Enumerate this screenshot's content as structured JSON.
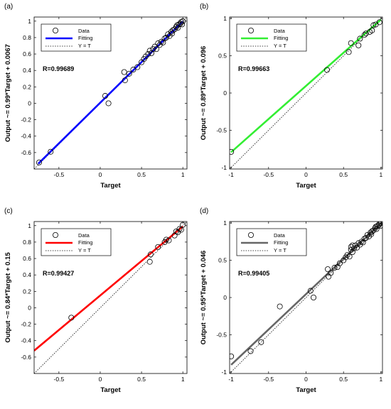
{
  "chart_data": [
    {
      "panel_label": "(a)",
      "type": "scatter",
      "xlabel": "Target",
      "ylabel": "Output ~= 0.99*Target + 0.0067",
      "r_text": "R=0.99689",
      "fit_color": "#0000ff",
      "xlim": [
        -0.8,
        1.05
      ],
      "ylim": [
        -0.8,
        1.05
      ],
      "xticks": [
        -0.5,
        0,
        0.5,
        1
      ],
      "xtick_labels": [
        "-0.5",
        "0",
        "0.5",
        "1"
      ],
      "yticks": [
        -0.6,
        -0.4,
        -0.2,
        0,
        0.2,
        0.4,
        0.6,
        0.8,
        1
      ],
      "ytick_labels": [
        "-0.6",
        "-0.4",
        "-0.2",
        "0",
        "0.2",
        "0.4",
        "0.6",
        "0.8",
        "1"
      ],
      "fit": {
        "slope": 0.99,
        "intercept": 0.0067,
        "x_range": [
          -0.75,
          1.0
        ]
      },
      "legend": {
        "data": "Data",
        "fitting": "Fitting",
        "yt": "Y = T"
      },
      "points": [
        [
          -0.74,
          -0.72
        ],
        [
          -0.6,
          -0.59
        ],
        [
          0.06,
          0.09
        ],
        [
          0.1,
          0.0
        ],
        [
          0.29,
          0.38
        ],
        [
          0.3,
          0.28
        ],
        [
          0.35,
          0.36
        ],
        [
          0.4,
          0.41
        ],
        [
          0.45,
          0.44
        ],
        [
          0.5,
          0.5
        ],
        [
          0.53,
          0.54
        ],
        [
          0.55,
          0.57
        ],
        [
          0.58,
          0.6
        ],
        [
          0.6,
          0.64
        ],
        [
          0.62,
          0.61
        ],
        [
          0.64,
          0.66
        ],
        [
          0.66,
          0.69
        ],
        [
          0.68,
          0.66
        ],
        [
          0.7,
          0.73
        ],
        [
          0.72,
          0.71
        ],
        [
          0.74,
          0.75
        ],
        [
          0.76,
          0.74
        ],
        [
          0.78,
          0.79
        ],
        [
          0.8,
          0.8
        ],
        [
          0.82,
          0.84
        ],
        [
          0.84,
          0.82
        ],
        [
          0.86,
          0.87
        ],
        [
          0.88,
          0.89
        ],
        [
          0.9,
          0.9
        ],
        [
          0.92,
          0.93
        ],
        [
          0.94,
          0.92
        ],
        [
          0.95,
          0.96
        ],
        [
          0.97,
          0.97
        ],
        [
          0.98,
          0.99
        ],
        [
          1.0,
          1.0
        ],
        [
          0.99,
          0.96
        ],
        [
          0.93,
          0.95
        ],
        [
          0.87,
          0.85
        ]
      ]
    },
    {
      "panel_label": "(b)",
      "type": "scatter",
      "xlabel": "Target",
      "ylabel": "Output ~= 0.89*Target + 0.096",
      "r_text": "R=0.99663",
      "fit_color": "#33ee33",
      "xlim": [
        -1.02,
        1.02
      ],
      "ylim": [
        -1.02,
        1.02
      ],
      "xticks": [
        -1,
        -0.5,
        0,
        0.5,
        1
      ],
      "xtick_labels": [
        "-1",
        "-0.5",
        "0",
        "0.5",
        "1"
      ],
      "yticks": [
        -1,
        -0.5,
        0,
        0.5,
        1
      ],
      "ytick_labels": [
        "-1",
        "-0.5",
        "0",
        "0.5",
        "1"
      ],
      "fit": {
        "slope": 0.89,
        "intercept": 0.096,
        "x_range": [
          -1.0,
          1.0
        ]
      },
      "legend": {
        "data": "Data",
        "fitting": "Fitting",
        "yt": "Y = T"
      },
      "points": [
        [
          -1.0,
          -0.79
        ],
        [
          0.28,
          0.31
        ],
        [
          0.57,
          0.55
        ],
        [
          0.6,
          0.67
        ],
        [
          0.7,
          0.64
        ],
        [
          0.72,
          0.73
        ],
        [
          0.78,
          0.78
        ],
        [
          0.8,
          0.8
        ],
        [
          0.85,
          0.82
        ],
        [
          0.88,
          0.84
        ],
        [
          0.9,
          0.91
        ],
        [
          0.93,
          0.92
        ],
        [
          0.98,
          0.95
        ]
      ]
    },
    {
      "panel_label": "(c)",
      "type": "scatter",
      "xlabel": "Target",
      "ylabel": "Output ~= 0.84*Target + 0.15",
      "r_text": "R=0.99427",
      "fit_color": "#ff0000",
      "xlim": [
        -0.8,
        1.05
      ],
      "ylim": [
        -0.8,
        1.05
      ],
      "xticks": [
        -0.5,
        0,
        0.5,
        1
      ],
      "xtick_labels": [
        "-0.5",
        "0",
        "0.5",
        "1"
      ],
      "yticks": [
        -0.6,
        -0.4,
        -0.2,
        0,
        0.2,
        0.4,
        0.6,
        0.8,
        1
      ],
      "ytick_labels": [
        "-0.6",
        "-0.4",
        "-0.2",
        "0",
        "0.2",
        "0.4",
        "0.6",
        "0.8",
        "1"
      ],
      "fit": {
        "slope": 0.84,
        "intercept": 0.15,
        "x_range": [
          -0.8,
          1.0
        ]
      },
      "legend": {
        "data": "Data",
        "fitting": "Fitting",
        "yt": "Y = T"
      },
      "points": [
        [
          -0.35,
          -0.12
        ],
        [
          0.6,
          0.56
        ],
        [
          0.61,
          0.65
        ],
        [
          0.7,
          0.74
        ],
        [
          0.78,
          0.8
        ],
        [
          0.8,
          0.83
        ],
        [
          0.83,
          0.82
        ],
        [
          0.9,
          0.88
        ],
        [
          0.92,
          0.93
        ],
        [
          0.94,
          0.92
        ],
        [
          0.96,
          0.96
        ],
        [
          0.98,
          0.95
        ],
        [
          1.0,
          1.01
        ]
      ]
    },
    {
      "panel_label": "(d)",
      "type": "scatter",
      "xlabel": "Target",
      "ylabel": "Output ~= 0.95*Target + 0.046",
      "r_text": "R=0.99405",
      "fit_color": "#666666",
      "xlim": [
        -1.02,
        1.02
      ],
      "ylim": [
        -1.02,
        1.02
      ],
      "xticks": [
        -1,
        -0.5,
        0,
        0.5,
        1
      ],
      "xtick_labels": [
        "-1",
        "-0.5",
        "0",
        "0.5",
        "1"
      ],
      "yticks": [
        -1,
        -0.5,
        0,
        0.5,
        1
      ],
      "ytick_labels": [
        "-1",
        "-0.5",
        "0",
        "0.5",
        "1"
      ],
      "fit": {
        "slope": 0.95,
        "intercept": 0.046,
        "x_range": [
          -1.0,
          1.0
        ]
      },
      "legend": {
        "data": "Data",
        "fitting": "Fitting",
        "yt": "Y = T"
      },
      "points": [
        [
          -1.0,
          -0.79
        ],
        [
          -0.74,
          -0.72
        ],
        [
          -0.6,
          -0.6
        ],
        [
          -0.35,
          -0.12
        ],
        [
          0.06,
          0.09
        ],
        [
          0.1,
          0.0
        ],
        [
          0.29,
          0.38
        ],
        [
          0.3,
          0.28
        ],
        [
          0.33,
          0.33
        ],
        [
          0.38,
          0.4
        ],
        [
          0.42,
          0.41
        ],
        [
          0.45,
          0.46
        ],
        [
          0.5,
          0.5
        ],
        [
          0.53,
          0.54
        ],
        [
          0.55,
          0.57
        ],
        [
          0.58,
          0.55
        ],
        [
          0.6,
          0.64
        ],
        [
          0.62,
          0.61
        ],
        [
          0.64,
          0.66
        ],
        [
          0.66,
          0.7
        ],
        [
          0.68,
          0.67
        ],
        [
          0.7,
          0.73
        ],
        [
          0.72,
          0.71
        ],
        [
          0.74,
          0.75
        ],
        [
          0.76,
          0.74
        ],
        [
          0.78,
          0.79
        ],
        [
          0.8,
          0.8
        ],
        [
          0.82,
          0.84
        ],
        [
          0.84,
          0.82
        ],
        [
          0.86,
          0.87
        ],
        [
          0.88,
          0.89
        ],
        [
          0.9,
          0.9
        ],
        [
          0.92,
          0.93
        ],
        [
          0.94,
          0.92
        ],
        [
          0.95,
          0.96
        ],
        [
          0.97,
          0.97
        ],
        [
          0.98,
          0.99
        ],
        [
          1.0,
          1.0
        ],
        [
          0.99,
          0.96
        ],
        [
          0.93,
          0.95
        ],
        [
          0.87,
          0.85
        ],
        [
          0.62,
          0.7
        ],
        [
          0.6,
          0.68
        ]
      ]
    }
  ]
}
